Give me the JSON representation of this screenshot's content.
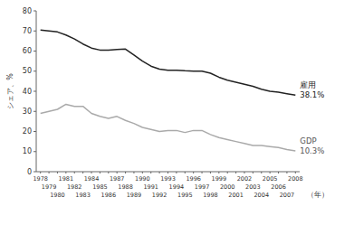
{
  "chart_data": {
    "type": "line",
    "ylabel": "シェア、%",
    "xlabel": "（年）",
    "x": [
      1978,
      1979,
      1980,
      1981,
      1982,
      1983,
      1984,
      1985,
      1986,
      1987,
      1988,
      1989,
      1990,
      1991,
      1992,
      1993,
      1994,
      1995,
      1996,
      1997,
      1998,
      1999,
      2000,
      2001,
      2002,
      2003,
      2004,
      2005,
      2006,
      2007,
      2008
    ],
    "series": [
      {
        "name": "雇用",
        "color": "#222222",
        "values": [
          70.5,
          70.0,
          69.5,
          68.0,
          66.0,
          63.5,
          61.5,
          60.5,
          60.5,
          60.8,
          61.0,
          58.0,
          55.0,
          52.5,
          51.0,
          50.5,
          50.5,
          50.2,
          50.0,
          50.0,
          49.0,
          47.0,
          45.5,
          44.5,
          43.5,
          42.5,
          41.0,
          40.0,
          39.5,
          38.8,
          38.1
        ]
      },
      {
        "name": "GDP",
        "color": "#aaaaaa",
        "values": [
          29.0,
          30.0,
          31.0,
          33.5,
          32.5,
          32.5,
          29.0,
          27.5,
          26.5,
          27.5,
          25.5,
          24.0,
          22.0,
          21.0,
          20.0,
          20.5,
          20.5,
          19.5,
          20.5,
          20.5,
          18.5,
          17.0,
          16.0,
          15.0,
          14.0,
          13.0,
          13.0,
          12.5,
          12.0,
          11.0,
          10.3
        ]
      }
    ],
    "annotations": [
      {
        "text": "38.1%",
        "x": 2008,
        "y": 38.1
      },
      {
        "text": "10.3%",
        "x": 2008,
        "y": 10.3
      }
    ],
    "xlim": [
      1977.5,
      2008.5
    ],
    "xticks": [
      1978,
      1979,
      1980,
      1981,
      1982,
      1983,
      1984,
      1985,
      1986,
      1987,
      1988,
      1989,
      1990,
      1991,
      1992,
      1993,
      1994,
      1995,
      1996,
      1997,
      1998,
      1999,
      2000,
      2001,
      2002,
      2003,
      2004,
      2005,
      2006,
      2007,
      2008
    ],
    "ylim": [
      0,
      80
    ],
    "yticks": [
      0,
      10,
      20,
      30,
      40,
      50,
      60,
      70,
      80
    ],
    "grid": false
  }
}
